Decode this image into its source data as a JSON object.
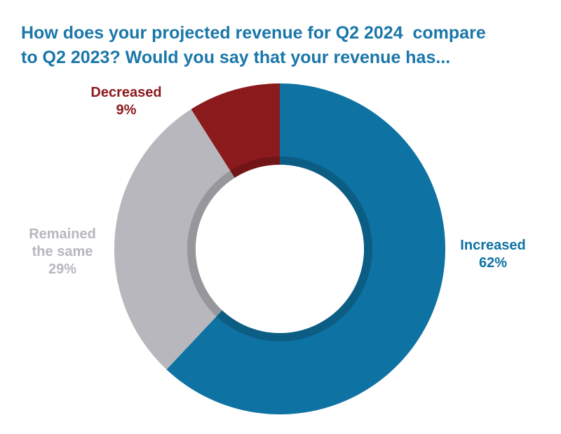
{
  "chart_data": {
    "type": "pie",
    "variant": "donut",
    "title_lines": [
      "How does your projected revenue for Q2 2024  compare",
      "to Q2 2023? Would you say that your revenue has..."
    ],
    "slices": [
      {
        "name": "Increased",
        "label_lines": [
          "Increased"
        ],
        "value": 62,
        "display": "62%",
        "color": "#0e72a2"
      },
      {
        "name": "Remained the same",
        "label_lines": [
          "Remained",
          "the same"
        ],
        "value": 29,
        "display": "29%",
        "color": "#b7b7bd"
      },
      {
        "name": "Decreased",
        "label_lines": [
          "Decreased"
        ],
        "value": 9,
        "display": "9%",
        "color": "#8b1a1d"
      }
    ],
    "start_angle": "12 o'clock",
    "direction": "clockwise",
    "legend": "none"
  }
}
